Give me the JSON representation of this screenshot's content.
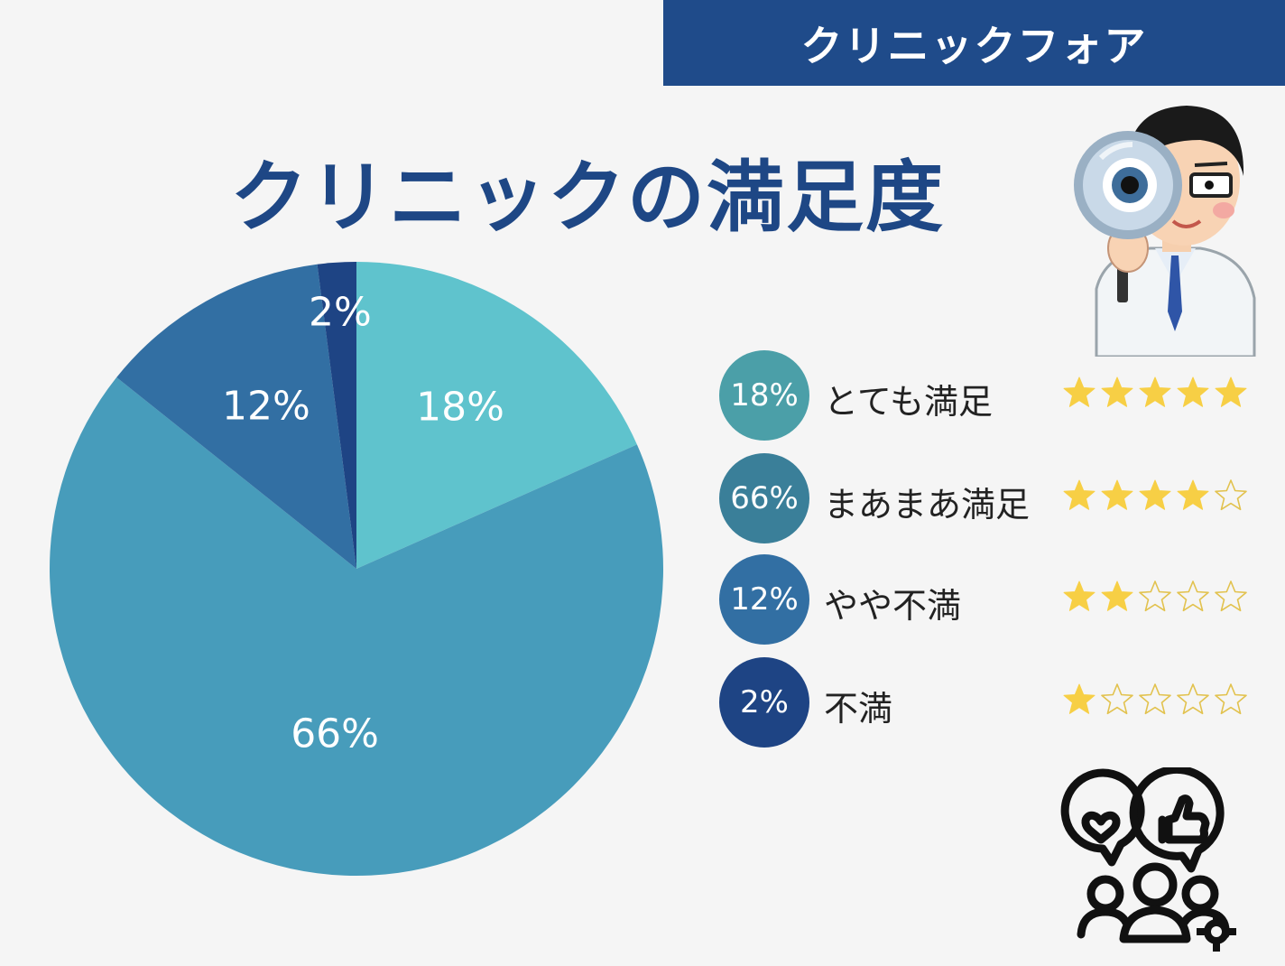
{
  "brand": "クリニックフォア",
  "title": "クリニックの満足度",
  "chart_data": {
    "type": "pie",
    "title": "クリニックの満足度",
    "slices": [
      {
        "label": "とても満足",
        "value": 18,
        "value_label": "18%",
        "color": "#5fc3cd",
        "legend_color": "#4b9fa8",
        "stars": 5
      },
      {
        "label": "まあまあ満足",
        "value": 66,
        "value_label": "66%",
        "color": "#479cbb",
        "legend_color": "#3a7f99",
        "stars": 4
      },
      {
        "label": "やや不満",
        "value": 12,
        "value_label": "12%",
        "color": "#326fa3",
        "legend_color": "#326fa3",
        "stars": 2
      },
      {
        "label": "不満",
        "value": 2,
        "value_label": "2%",
        "color": "#1e4484",
        "legend_color": "#1e4484",
        "stars": 1
      }
    ],
    "max_stars": 5,
    "legend_position": "right"
  },
  "icons": {
    "doctor": "doctor-magnifier-icon",
    "community": "community-feedback-icon",
    "star_filled": "star-filled-icon",
    "star_empty": "star-empty-icon"
  }
}
